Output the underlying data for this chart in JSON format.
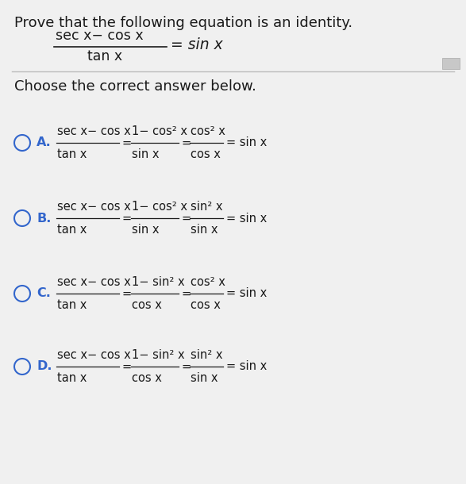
{
  "bg_color": "#e8e8e8",
  "panel_color": "#f0f0f0",
  "title_text": "Prove that the following equation is an identity.",
  "choose_text": "Choose the correct answer below.",
  "text_color": "#1a1a1a",
  "label_color": "#3366cc",
  "circle_color": "#3366cc",
  "separator_color": "#bbbbbb",
  "title_fontsize": 13,
  "body_fontsize": 11.5,
  "label_fontsize": 12,
  "main_eq_parts": {
    "numerator": "sec x− cos x",
    "denominator": "tan x",
    "rhs": "= sin x"
  },
  "options": [
    {
      "label": "A.",
      "parts": [
        {
          "num": "sec x− cos x",
          "den": "tan x"
        },
        {
          "eq": "="
        },
        {
          "num": "1− cos² x",
          "den": "sin x"
        },
        {
          "eq": "="
        },
        {
          "num": "cos² x",
          "den": "cos x"
        },
        {
          "eq": "= sin x"
        }
      ]
    },
    {
      "label": "B.",
      "parts": [
        {
          "num": "sec x− cos x",
          "den": "tan x"
        },
        {
          "eq": "="
        },
        {
          "num": "1− cos² x",
          "den": "sin x"
        },
        {
          "eq": "="
        },
        {
          "num": "sin² x",
          "den": "sin x"
        },
        {
          "eq": "= sin x"
        }
      ]
    },
    {
      "label": "C.",
      "parts": [
        {
          "num": "sec x− cos x",
          "den": "tan x"
        },
        {
          "eq": "="
        },
        {
          "num": "1− sin² x",
          "den": "cos x"
        },
        {
          "eq": "="
        },
        {
          "num": "cos² x",
          "den": "cos x"
        },
        {
          "eq": "= sin x"
        }
      ]
    },
    {
      "label": "D.",
      "parts": [
        {
          "num": "sec x− cos x",
          "den": "tan x"
        },
        {
          "eq": "="
        },
        {
          "num": "1− sin² x",
          "den": "cos x"
        },
        {
          "eq": "="
        },
        {
          "num": "sin² x",
          "den": "sin x"
        },
        {
          "eq": "= sin x"
        }
      ]
    }
  ]
}
